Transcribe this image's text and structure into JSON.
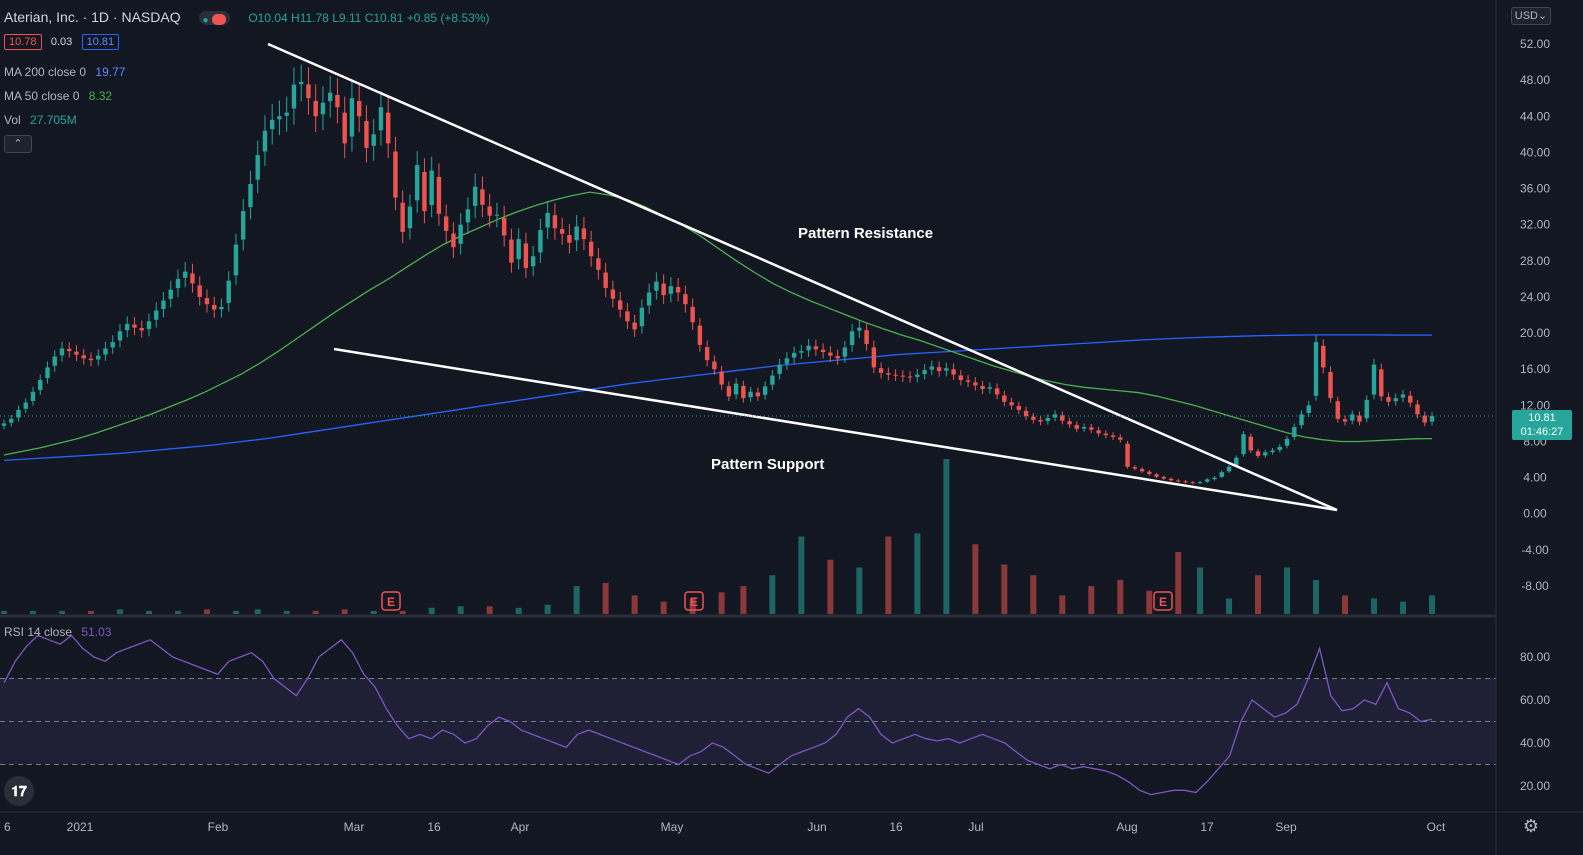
{
  "header": {
    "symbol_title": "Aterian, Inc. · 1D · NASDAQ",
    "ohlc": {
      "o": "O10.04",
      "h": "H11.78",
      "l": "L9.11",
      "c": "C10.81",
      "chg": "+0.85 (+8.53%)"
    },
    "bid": "10.78",
    "spread": "0.03",
    "ask": "10.81",
    "ma200_label": "MA 200 close 0",
    "ma200_value": "19.77",
    "ma50_label": "MA 50 close 0",
    "ma50_value": "8.32",
    "vol_label": "Vol",
    "vol_value": "27.705M",
    "collapse_icon": "chevron-up-icon",
    "currency": "USD"
  },
  "price_tag": {
    "price": "10.81",
    "countdown": "01:46:27"
  },
  "rsi": {
    "label": "RSI 14 close",
    "value": "51.03"
  },
  "annotations": {
    "resistance": "Pattern Resistance",
    "support": "Pattern Support"
  },
  "earnings_marker": "E",
  "x_axis_labels": [
    {
      "t": "6",
      "x": 4
    },
    {
      "t": "2021",
      "x": 80
    },
    {
      "t": "Feb",
      "x": 218
    },
    {
      "t": "Mar",
      "x": 354
    },
    {
      "t": "16",
      "x": 434
    },
    {
      "t": "Apr",
      "x": 520
    },
    {
      "t": "May",
      "x": 672
    },
    {
      "t": "Jun",
      "x": 817
    },
    {
      "t": "16",
      "x": 896
    },
    {
      "t": "Jul",
      "x": 976
    },
    {
      "t": "Aug",
      "x": 1127
    },
    {
      "t": "17",
      "x": 1207
    },
    {
      "t": "Sep",
      "x": 1286
    },
    {
      "t": "Oct",
      "x": 1436
    }
  ],
  "colors": {
    "background": "#131722",
    "up": "#26a69a",
    "down": "#ef5350",
    "ma200": "#2962ff",
    "ma50": "#4caf50",
    "rsi": "#7e57c2",
    "trendline": "#ffffff"
  },
  "chart_data": [
    {
      "type": "candlestick",
      "title": "Aterian, Inc. 1D NASDAQ",
      "y_ticks": [
        "52.00",
        "48.00",
        "44.00",
        "40.00",
        "36.00",
        "32.00",
        "28.00",
        "24.00",
        "20.00",
        "16.00",
        "12.00",
        "8.00",
        "4.00",
        "0.00",
        "-4.00",
        "-8.00"
      ],
      "ylim": [
        -10,
        57
      ],
      "closes": [
        10.0,
        10.5,
        11.5,
        12.3,
        13.5,
        14.8,
        16.2,
        17.4,
        18.3,
        18.0,
        17.6,
        17.2,
        17.0,
        17.5,
        18.3,
        19.0,
        20.2,
        21.0,
        20.6,
        20.3,
        21.3,
        22.5,
        23.6,
        24.8,
        26.0,
        26.8,
        25.5,
        24.0,
        23.2,
        22.6,
        22.9,
        25.8,
        29.8,
        33.5,
        36.5,
        39.7,
        42.4,
        43.6,
        44.0,
        44.4,
        47.5,
        47.8,
        46.0,
        44.0,
        45.5,
        46.6,
        45.0,
        41.0,
        46.0,
        44.0,
        40.5,
        42.0,
        45.0,
        41.0,
        35.0,
        31.2,
        34.0,
        38.6,
        33.5,
        38.0,
        33.2,
        31.3,
        29.5,
        32.0,
        33.7,
        36.2,
        34.2,
        33.0,
        33.1,
        30.8,
        27.8,
        30.4,
        27.2,
        28.5,
        31.4,
        33.3,
        31.6,
        31.0,
        30.0,
        31.8,
        30.4,
        28.5,
        27.0,
        25.0,
        23.8,
        22.6,
        21.3,
        20.4,
        22.8,
        24.5,
        25.7,
        24.2,
        25.2,
        24.5,
        23.2,
        21.2,
        18.7,
        17.0,
        16.0,
        14.3,
        13.0,
        14.4,
        12.8,
        13.5,
        13.0,
        14.1,
        15.3,
        16.5,
        17.2,
        17.8,
        18.0,
        18.6,
        18.2,
        17.9,
        17.5,
        17.2,
        18.4,
        20.2,
        20.6,
        18.8,
        16.2,
        15.6,
        15.4,
        15.3,
        15.2,
        15.1,
        15.4,
        15.9,
        16.3,
        15.8,
        16.1,
        15.4,
        14.8,
        14.6,
        14.2,
        13.8,
        14.0,
        13.2,
        12.4,
        12.0,
        11.5,
        10.8,
        10.4,
        10.2,
        10.6,
        11.0,
        10.3,
        9.9,
        9.4,
        9.6,
        9.3,
        8.9,
        8.7,
        8.5,
        8.2,
        5.2,
        5.0,
        4.7,
        4.4,
        4.1,
        3.9,
        3.7,
        3.6,
        3.5,
        3.4,
        3.5,
        3.8,
        4.0,
        4.6,
        5.2,
        6.2,
        8.8,
        7.0,
        6.4,
        6.8,
        7.0,
        7.4,
        8.3,
        9.6,
        11.0,
        12.0,
        19.0,
        16.2,
        12.8,
        10.5,
        10.2,
        11.0,
        10.2,
        12.6,
        16.5,
        13.0,
        12.4,
        12.8,
        13.2,
        12.3,
        11.0,
        10.1,
        10.81
      ],
      "ma50": [
        6.5,
        6.9,
        7.3,
        7.8,
        8.3,
        8.9,
        9.6,
        10.3,
        11.0,
        11.8,
        12.6,
        13.5,
        14.5,
        15.5,
        16.7,
        18.0,
        19.4,
        20.8,
        22.2,
        23.5,
        24.8,
        26.0,
        27.3,
        28.6,
        29.8,
        30.8,
        31.7,
        32.6,
        33.4,
        34.1,
        34.7,
        35.2,
        35.6,
        35.3,
        34.8,
        34.0,
        33.0,
        32.0,
        30.8,
        29.4,
        28.0,
        26.7,
        25.5,
        24.5,
        23.6,
        22.8,
        22.0,
        21.2,
        20.5,
        19.8,
        19.2,
        18.5,
        17.8,
        17.1,
        16.4,
        15.8,
        15.2,
        14.7,
        14.3,
        14.0,
        13.8,
        13.6,
        13.4,
        13.0,
        12.5,
        12.0,
        11.4,
        10.8,
        10.2,
        9.6,
        9.0,
        8.5,
        8.2,
        8.0,
        8.0,
        8.1,
        8.2,
        8.3,
        8.32
      ],
      "ma200": [
        5.9,
        6.1,
        6.3,
        6.5,
        6.7,
        7.0,
        7.3,
        7.6,
        8.0,
        8.4,
        8.9,
        9.4,
        9.9,
        10.4,
        10.9,
        11.4,
        11.9,
        12.4,
        12.9,
        13.4,
        13.9,
        14.4,
        14.8,
        15.2,
        15.6,
        16.0,
        16.4,
        16.7,
        17.0,
        17.3,
        17.6,
        17.8,
        18.0,
        18.2,
        18.4,
        18.6,
        18.8,
        19.0,
        19.2,
        19.35,
        19.5,
        19.6,
        19.7,
        19.75,
        19.8,
        19.8,
        19.8,
        19.78,
        19.77
      ],
      "volume_relative": [
        0.02,
        0.02,
        0.02,
        0.02,
        0.03,
        0.02,
        0.02,
        0.03,
        0.02,
        0.03,
        0.02,
        0.02,
        0.03,
        0.02,
        0.02,
        0.04,
        0.05,
        0.05,
        0.04,
        0.06,
        0.18,
        0.2,
        0.12,
        0.08,
        0.1,
        0.14,
        0.18,
        0.25,
        0.5,
        0.35,
        0.3,
        0.5,
        0.52,
        1.0,
        0.45,
        0.32,
        0.25,
        0.12,
        0.18,
        0.22,
        0.15,
        0.4,
        0.3,
        0.1,
        0.25,
        0.3,
        0.22,
        0.12,
        0.1,
        0.08,
        0.12
      ],
      "earnings_markers": 3
    },
    {
      "type": "line",
      "title": "RSI 14 close",
      "y_ticks": [
        "80.00",
        "60.00",
        "40.00",
        "20.00"
      ],
      "ylim": [
        10,
        92
      ],
      "bands": [
        30,
        50,
        70
      ],
      "values": [
        68,
        78,
        85,
        90,
        88,
        86,
        90,
        84,
        80,
        78,
        82,
        84,
        86,
        88,
        84,
        80,
        78,
        76,
        74,
        72,
        78,
        80,
        82,
        78,
        70,
        66,
        62,
        70,
        80,
        84,
        88,
        82,
        72,
        66,
        56,
        48,
        42,
        44,
        42,
        46,
        44,
        40,
        42,
        48,
        52,
        50,
        46,
        44,
        42,
        40,
        38,
        44,
        46,
        44,
        42,
        40,
        38,
        36,
        34,
        32,
        30,
        34,
        36,
        40,
        38,
        34,
        30,
        28,
        26,
        30,
        34,
        36,
        38,
        40,
        44,
        52,
        56,
        52,
        44,
        40,
        42,
        44,
        42,
        41,
        42,
        40,
        42,
        44,
        42,
        40,
        36,
        32,
        30,
        28,
        30,
        28,
        29,
        28,
        27,
        25,
        22,
        18,
        16,
        17,
        18,
        18,
        17,
        22,
        28,
        34,
        50,
        60,
        56,
        52,
        54,
        58,
        70,
        84,
        62,
        55,
        56,
        60,
        58,
        68,
        56,
        54,
        50,
        51.03
      ]
    }
  ]
}
